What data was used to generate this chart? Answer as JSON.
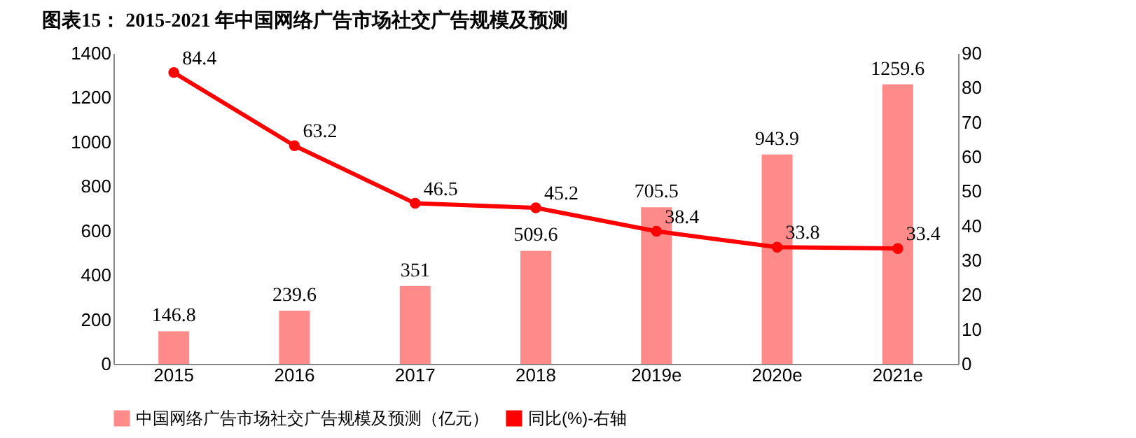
{
  "chart_data": {
    "type": "bar",
    "title": "图表15：  2015-2021 年中国网络广告市场社交广告规模及预测",
    "categories": [
      "2015",
      "2016",
      "2017",
      "2018",
      "2019e",
      "2020e",
      "2021e"
    ],
    "series": [
      {
        "name": "中国网络广告市场社交广告规模及预测（亿元）",
        "color": "#ff8a8a",
        "values": [
          146.8,
          239.6,
          351,
          509.6,
          705.5,
          943.9,
          1259.6
        ]
      },
      {
        "name": "同比(%)-右轴",
        "type": "line",
        "axis": "y2",
        "color": "#ff0000",
        "values": [
          84.4,
          63.2,
          46.5,
          45.2,
          38.4,
          33.8,
          33.4
        ]
      }
    ],
    "ylim": [
      0,
      1400
    ],
    "yticks": [
      0,
      200,
      400,
      600,
      800,
      1000,
      1200,
      1400
    ],
    "y2lim": [
      0,
      90
    ],
    "y2ticks": [
      0,
      10,
      20,
      30,
      40,
      50,
      60,
      70,
      80,
      90
    ],
    "marker": "circle",
    "data_labels": true,
    "legend": "bottom"
  }
}
